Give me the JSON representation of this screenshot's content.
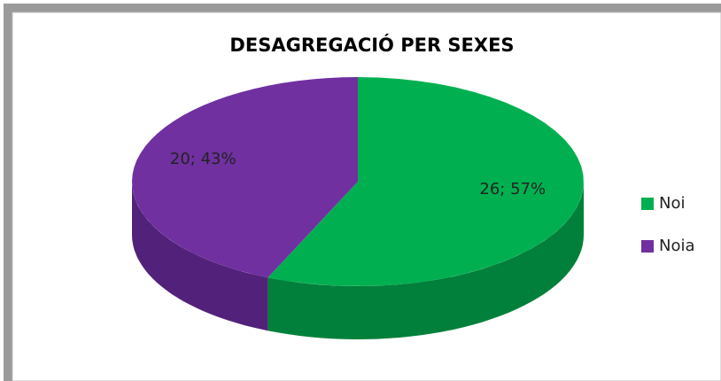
{
  "chart_data": {
    "type": "pie",
    "title": "DESAGREGACIÓ PER SEXES",
    "categories": [
      "Noi",
      "Noia"
    ],
    "values": [
      26,
      20
    ],
    "value_labels": [
      "26; 57%",
      "20; 43%"
    ],
    "colors": [
      "#00b050",
      "#7030a0"
    ],
    "side_colors": [
      "#00803a",
      "#52227a"
    ],
    "three_d": true,
    "legend": "right"
  }
}
